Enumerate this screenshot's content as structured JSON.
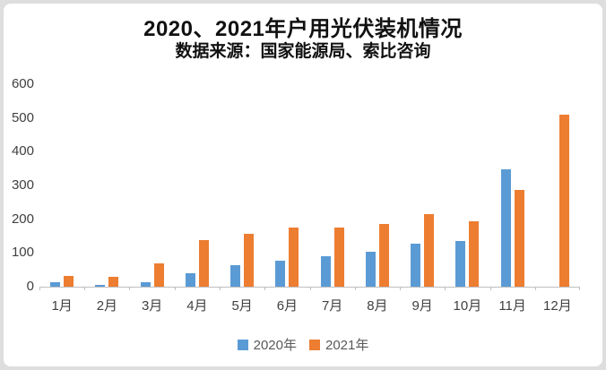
{
  "title": "2020、2021年户用光伏装机情况",
  "subtitle": "数据来源：国家能源局、索比咨询",
  "colors": {
    "series_2020": "#5B9BD5",
    "series_2021": "#ED7D31",
    "axis": "#BFBFBF",
    "axis_text": "#404040",
    "legend_text": "#595959",
    "card_background": "#FFFFFF",
    "page_background": "#DEDEDE"
  },
  "chart_data": {
    "type": "bar",
    "categories": [
      "1月",
      "2月",
      "3月",
      "4月",
      "5月",
      "6月",
      "7月",
      "8月",
      "9月",
      "10月",
      "11月",
      "12月"
    ],
    "series": [
      {
        "name": "2020年",
        "color": "#5B9BD5",
        "values": [
          14,
          5,
          14,
          41,
          63,
          77,
          90,
          103,
          128,
          136,
          347,
          0
        ]
      },
      {
        "name": "2021年",
        "color": "#ED7D31",
        "values": [
          33,
          29,
          69,
          137,
          157,
          175,
          176,
          186,
          214,
          193,
          286,
          510
        ]
      }
    ],
    "title": "2020、2021年户用光伏装机情况",
    "subtitle": "数据来源：国家能源局、索比咨询",
    "xlabel": "",
    "ylabel": "",
    "ylim": [
      0,
      600
    ],
    "yticks": [
      0,
      100,
      200,
      300,
      400,
      500,
      600
    ],
    "grid": false,
    "legend_position": "bottom"
  },
  "legend": {
    "items": [
      {
        "label": "2020年",
        "color": "#5B9BD5"
      },
      {
        "label": "2021年",
        "color": "#ED7D31"
      }
    ]
  }
}
